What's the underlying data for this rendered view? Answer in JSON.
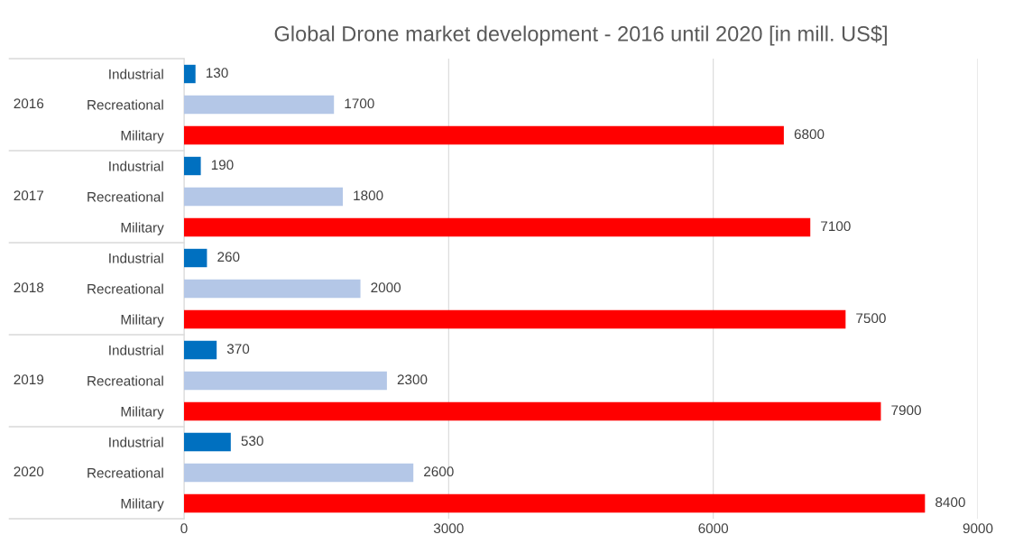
{
  "chart_data": {
    "type": "bar",
    "orientation": "horizontal",
    "title": "Global Drone market development - 2016 until 2020 [in mill. US$]",
    "categories": [
      "Industrial",
      "Recreational",
      "Military",
      "Industrial",
      "Recreational",
      "Military",
      "Industrial",
      "Recreational",
      "Military",
      "Industrial",
      "Recreational",
      "Military",
      "Industrial",
      "Recreational",
      "Military"
    ],
    "values": [
      130,
      1700,
      6800,
      190,
      1800,
      7100,
      260,
      2000,
      7500,
      370,
      2300,
      7900,
      530,
      2600,
      8400
    ],
    "colors": [
      "#0070c0",
      "#b4c7e7",
      "#ff0000",
      "#0070c0",
      "#b4c7e7",
      "#ff0000",
      "#0070c0",
      "#b4c7e7",
      "#ff0000",
      "#0070c0",
      "#b4c7e7",
      "#ff0000",
      "#0070c0",
      "#b4c7e7",
      "#ff0000"
    ],
    "annotations": [
      "2016",
      "2017",
      "2018",
      "2019",
      "2020"
    ],
    "xlim": [
      0,
      9000
    ],
    "xticks": [
      0,
      3000,
      6000,
      9000
    ],
    "data_labels": true,
    "grid": "x"
  }
}
